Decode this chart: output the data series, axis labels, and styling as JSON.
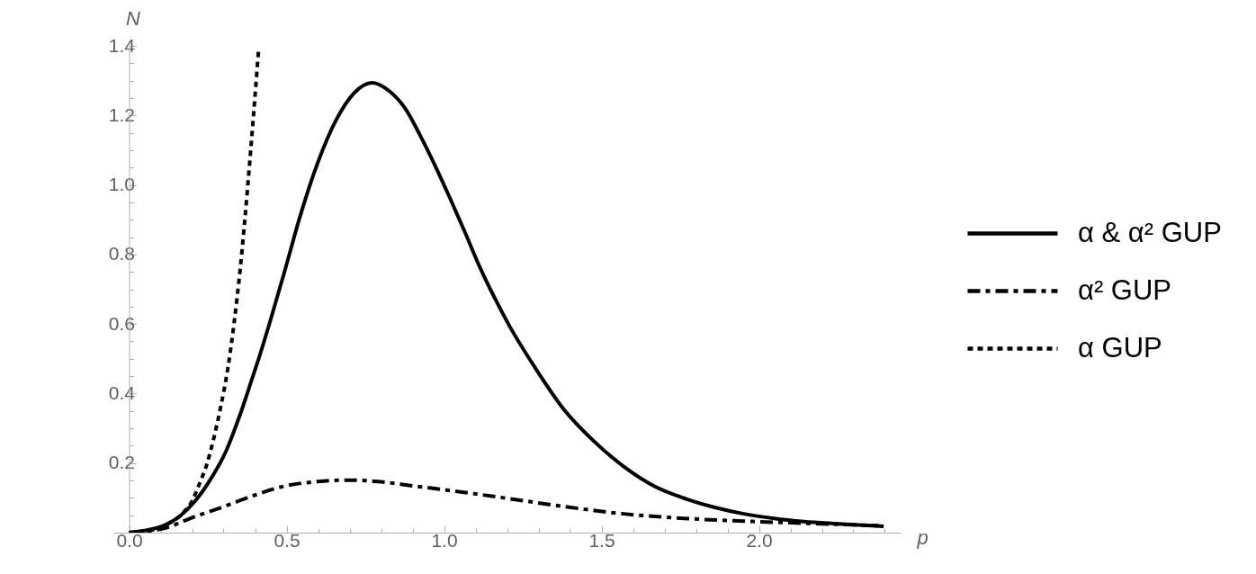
{
  "chart_data": {
    "type": "line",
    "xlabel": "p",
    "ylabel": "N",
    "xlim": [
      -0.05,
      2.45
    ],
    "ylim": [
      0,
      1.4
    ],
    "xticks": [
      {
        "value": 0,
        "label": "0.0"
      },
      {
        "value": 0.1,
        "label": null
      },
      {
        "value": 0.2,
        "label": null
      },
      {
        "value": 0.3,
        "label": null
      },
      {
        "value": 0.4,
        "label": null
      },
      0.5,
      {
        "value": 0.6,
        "label": null
      },
      {
        "value": 0.7,
        "label": null
      },
      {
        "value": 0.8,
        "label": null
      },
      {
        "value": 0.9,
        "label": null
      },
      {
        "value": 1,
        "label": "1.0"
      },
      {
        "value": 1.1,
        "label": null
      },
      {
        "value": 1.2,
        "label": null
      },
      {
        "value": 1.3,
        "label": null
      },
      {
        "value": 1.4,
        "label": null
      },
      1.5,
      {
        "value": 1.6,
        "label": null
      },
      {
        "value": 1.7,
        "label": null
      },
      {
        "value": 1.8,
        "label": null
      },
      {
        "value": 1.9,
        "label": null
      },
      {
        "value": 2,
        "label": "2.0"
      },
      {
        "value": 2.1,
        "label": null
      },
      {
        "value": 2.2,
        "label": null
      },
      {
        "value": 2.3,
        "label": null
      },
      {
        "value": 2.4,
        "label": null
      }
    ],
    "yticks": [
      {
        "value": 0.05,
        "label": null
      },
      {
        "value": 0.1,
        "label": null
      },
      {
        "value": 0.15,
        "label": null
      },
      0.2,
      {
        "value": 0.25,
        "label": null
      },
      {
        "value": 0.3,
        "label": null
      },
      {
        "value": 0.35,
        "label": null
      },
      0.4,
      {
        "value": 0.45,
        "label": null
      },
      {
        "value": 0.5,
        "label": null
      },
      {
        "value": 0.55,
        "label": null
      },
      0.6,
      {
        "value": 0.65,
        "label": null
      },
      {
        "value": 0.7,
        "label": null
      },
      {
        "value": 0.75,
        "label": null
      },
      0.8,
      {
        "value": 0.85,
        "label": null
      },
      {
        "value": 0.9,
        "label": null
      },
      {
        "value": 0.95,
        "label": null
      },
      {
        "value": 1,
        "label": "1.0"
      },
      {
        "value": 1.05,
        "label": null
      },
      {
        "value": 1.1,
        "label": null
      },
      {
        "value": 1.15,
        "label": null
      },
      1.2,
      {
        "value": 1.25,
        "label": null
      },
      {
        "value": 1.3,
        "label": null
      },
      {
        "value": 1.35,
        "label": null
      },
      1.4
    ],
    "grid": false,
    "legend": "right",
    "series": [
      {
        "name": "α & α² GUP",
        "color": "#000000",
        "line_style": "solid",
        "x": [
          0,
          0.067,
          0.114,
          0.162,
          0.21,
          0.257,
          0.305,
          0.353,
          0.391,
          0.41,
          0.448,
          0.495,
          0.543,
          0.6,
          0.657,
          0.714,
          0.772,
          0.829,
          0.876,
          0.924,
          0.971,
          1.019,
          1.067,
          1.114,
          1.162,
          1.21,
          1.286,
          1.381,
          1.476,
          1.571,
          1.667,
          1.762,
          1.857,
          1.952,
          2.048,
          2.143,
          2.238,
          2.396
        ],
        "values": [
          0,
          0.009,
          0.022,
          0.048,
          0.091,
          0.151,
          0.229,
          0.341,
          0.444,
          0.496,
          0.608,
          0.755,
          0.91,
          1.066,
          1.186,
          1.264,
          1.294,
          1.268,
          1.221,
          1.143,
          1.057,
          0.962,
          0.863,
          0.763,
          0.673,
          0.591,
          0.479,
          0.354,
          0.263,
          0.19,
          0.134,
          0.099,
          0.073,
          0.054,
          0.041,
          0.032,
          0.026,
          0.018
        ]
      },
      {
        "name": "α² GUP",
        "color": "#000000",
        "line_style": "dashdot",
        "x": [
          0,
          0.114,
          0.2,
          0.295,
          0.4,
          0.495,
          0.6,
          0.695,
          0.79,
          0.905,
          1.019,
          1.19,
          1.381,
          1.571,
          1.762,
          1.952,
          2.143,
          2.38
        ],
        "values": [
          0,
          0.013,
          0.043,
          0.073,
          0.108,
          0.134,
          0.147,
          0.151,
          0.147,
          0.134,
          0.121,
          0.1,
          0.075,
          0.054,
          0.041,
          0.033,
          0.027,
          0.02
        ]
      },
      {
        "name": "α GUP",
        "color": "#000000",
        "line_style": "dotted",
        "x": [
          0,
          0.095,
          0.133,
          0.171,
          0.2,
          0.224,
          0.248,
          0.269,
          0.29,
          0.314,
          0.333,
          0.353,
          0.377,
          0.395,
          0.411
        ],
        "values": [
          0,
          0.013,
          0.03,
          0.056,
          0.091,
          0.142,
          0.2,
          0.272,
          0.358,
          0.475,
          0.6,
          0.76,
          1.0,
          1.2,
          1.386
        ]
      }
    ]
  }
}
